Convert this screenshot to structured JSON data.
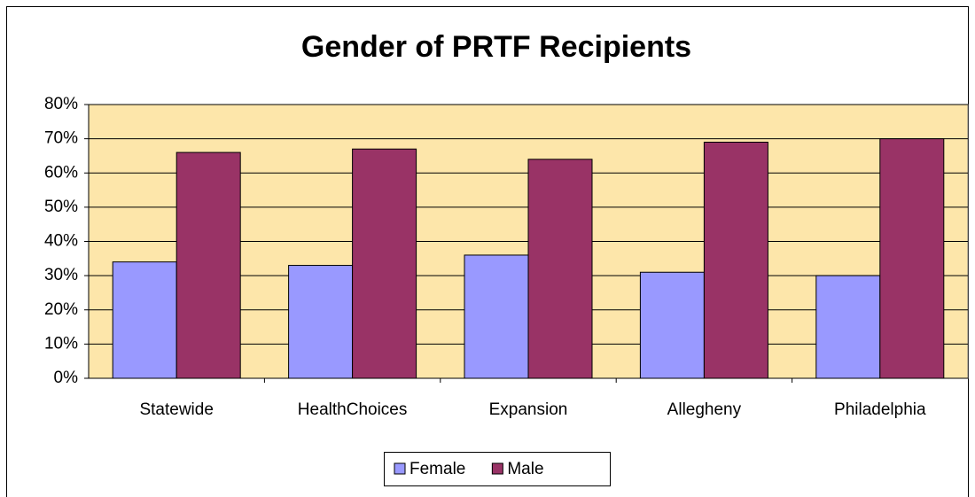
{
  "chart_data": {
    "type": "bar",
    "title": "Gender of PRTF Recipients",
    "categories": [
      "Statewide",
      "HealthChoices",
      "Expansion",
      "Allegheny",
      "Philadelphia"
    ],
    "series": [
      {
        "name": "Female",
        "color": "#9999ff",
        "values": [
          34,
          33,
          36,
          31,
          30
        ]
      },
      {
        "name": "Male",
        "color": "#993366",
        "values": [
          66,
          67,
          64,
          69,
          70
        ]
      }
    ],
    "ylim": [
      0,
      80
    ],
    "yticks": [
      {
        "value": 0,
        "label": "0%"
      },
      {
        "value": 10,
        "label": "10%"
      },
      {
        "value": 20,
        "label": "20%"
      },
      {
        "value": 30,
        "label": "30%"
      },
      {
        "value": 40,
        "label": "40%"
      },
      {
        "value": 50,
        "label": "50%"
      },
      {
        "value": 60,
        "label": "60%"
      },
      {
        "value": 70,
        "label": "70%"
      },
      {
        "value": 80,
        "label": "80%"
      }
    ],
    "grid": true,
    "background": "#fde6aa",
    "legend": "bottom"
  }
}
